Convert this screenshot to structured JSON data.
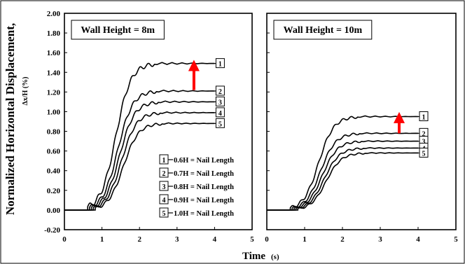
{
  "chart_data": [
    {
      "type": "line",
      "title": "Wall Height = 8m",
      "x_range": [
        0,
        5
      ],
      "ylim": [
        -0.2,
        2.0
      ],
      "x_ticks": [
        "0",
        "1",
        "2",
        "3",
        "4",
        "5"
      ],
      "y_ticks": [
        "-0.20",
        "0.00",
        "0.20",
        "0.40",
        "0.60",
        "0.80",
        "1.00",
        "1.20",
        "1.40",
        "1.60",
        "1.80",
        "2.00"
      ],
      "series": [
        {
          "name": "1",
          "final": 1.49,
          "color": "#000000"
        },
        {
          "name": "2",
          "final": 1.21,
          "color": "#000000"
        },
        {
          "name": "3",
          "final": 1.1,
          "color": "#000000"
        },
        {
          "name": "4",
          "final": 0.99,
          "color": "#000000"
        },
        {
          "name": "5",
          "final": 0.88,
          "color": "#000000"
        }
      ],
      "annotation": {
        "type": "arrow",
        "from_y": 1.22,
        "to_y": 1.47,
        "x": 3.45,
        "color": "#ff0000"
      },
      "legend": {
        "placement": "bottom-right",
        "entries": [
          {
            "num": "1",
            "text": "0.6H = Nail Length"
          },
          {
            "num": "2",
            "text": "0.7H = Nail Length"
          },
          {
            "num": "3",
            "text": "0.8H = Nail Length"
          },
          {
            "num": "4",
            "text": "0.9H = Nail Length"
          },
          {
            "num": "5",
            "text": "1.0H = Nail Length"
          }
        ]
      }
    },
    {
      "type": "line",
      "title": "Wall Height = 10m",
      "x_range": [
        0,
        5
      ],
      "ylim": [
        -0.2,
        2.0
      ],
      "x_ticks": [
        "0",
        "1",
        "2",
        "3",
        "4",
        "5"
      ],
      "series": [
        {
          "name": "1",
          "final": 0.95,
          "color": "#000000"
        },
        {
          "name": "2",
          "final": 0.78,
          "color": "#000000"
        },
        {
          "name": "3",
          "final": 0.7,
          "color": "#000000"
        },
        {
          "name": "4",
          "final": 0.63,
          "color": "#000000"
        },
        {
          "name": "5",
          "final": 0.58,
          "color": "#000000"
        }
      ],
      "annotation": {
        "type": "arrow",
        "from_y": 0.78,
        "to_y": 0.94,
        "x": 3.5,
        "color": "#ff0000"
      }
    }
  ],
  "axis_labels": {
    "y_main": "Normalized Horizontal Displacement,",
    "y_sub": "Δx/H (%)",
    "x_main": "Time",
    "x_unit": "(s)"
  }
}
